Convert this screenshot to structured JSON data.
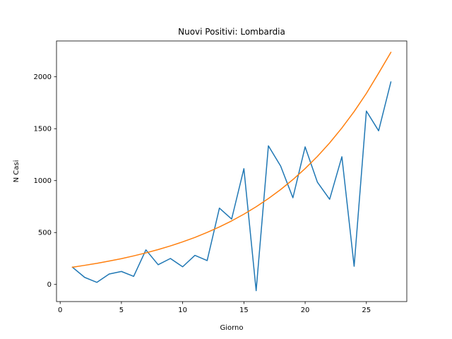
{
  "chart_data": {
    "type": "line",
    "title": "Nuovi Positivi: Lombardia",
    "xlabel": "Giorno",
    "ylabel": "N Casi",
    "xlim": [
      -0.3,
      28.3
    ],
    "ylim": [
      -165,
      2345
    ],
    "xticks": [
      0,
      5,
      10,
      15,
      20,
      25
    ],
    "yticks": [
      0,
      500,
      1000,
      1500,
      2000
    ],
    "grid": false,
    "legend": "none",
    "x": [
      1,
      2,
      3,
      4,
      5,
      6,
      7,
      8,
      9,
      10,
      11,
      12,
      13,
      14,
      15,
      16,
      17,
      18,
      19,
      20,
      21,
      22,
      23,
      24,
      25,
      26,
      27
    ],
    "series": [
      {
        "color": "#1f77b4",
        "values": [
          166,
          68,
          20,
          100,
          125,
          78,
          333,
          190,
          250,
          170,
          280,
          230,
          735,
          630,
          1115,
          -60,
          1335,
          1140,
          835,
          1325,
          985,
          820,
          1230,
          175,
          1670,
          1480,
          1950
        ]
      },
      {
        "color": "#ff7f0e",
        "values": [
          166,
          184,
          203,
          225,
          248,
          275,
          304,
          336,
          371,
          410,
          453,
          501,
          554,
          612,
          677,
          748,
          827,
          914,
          1010,
          1116,
          1233,
          1363,
          1507,
          1665,
          1840,
          2035,
          2235
        ]
      }
    ]
  }
}
